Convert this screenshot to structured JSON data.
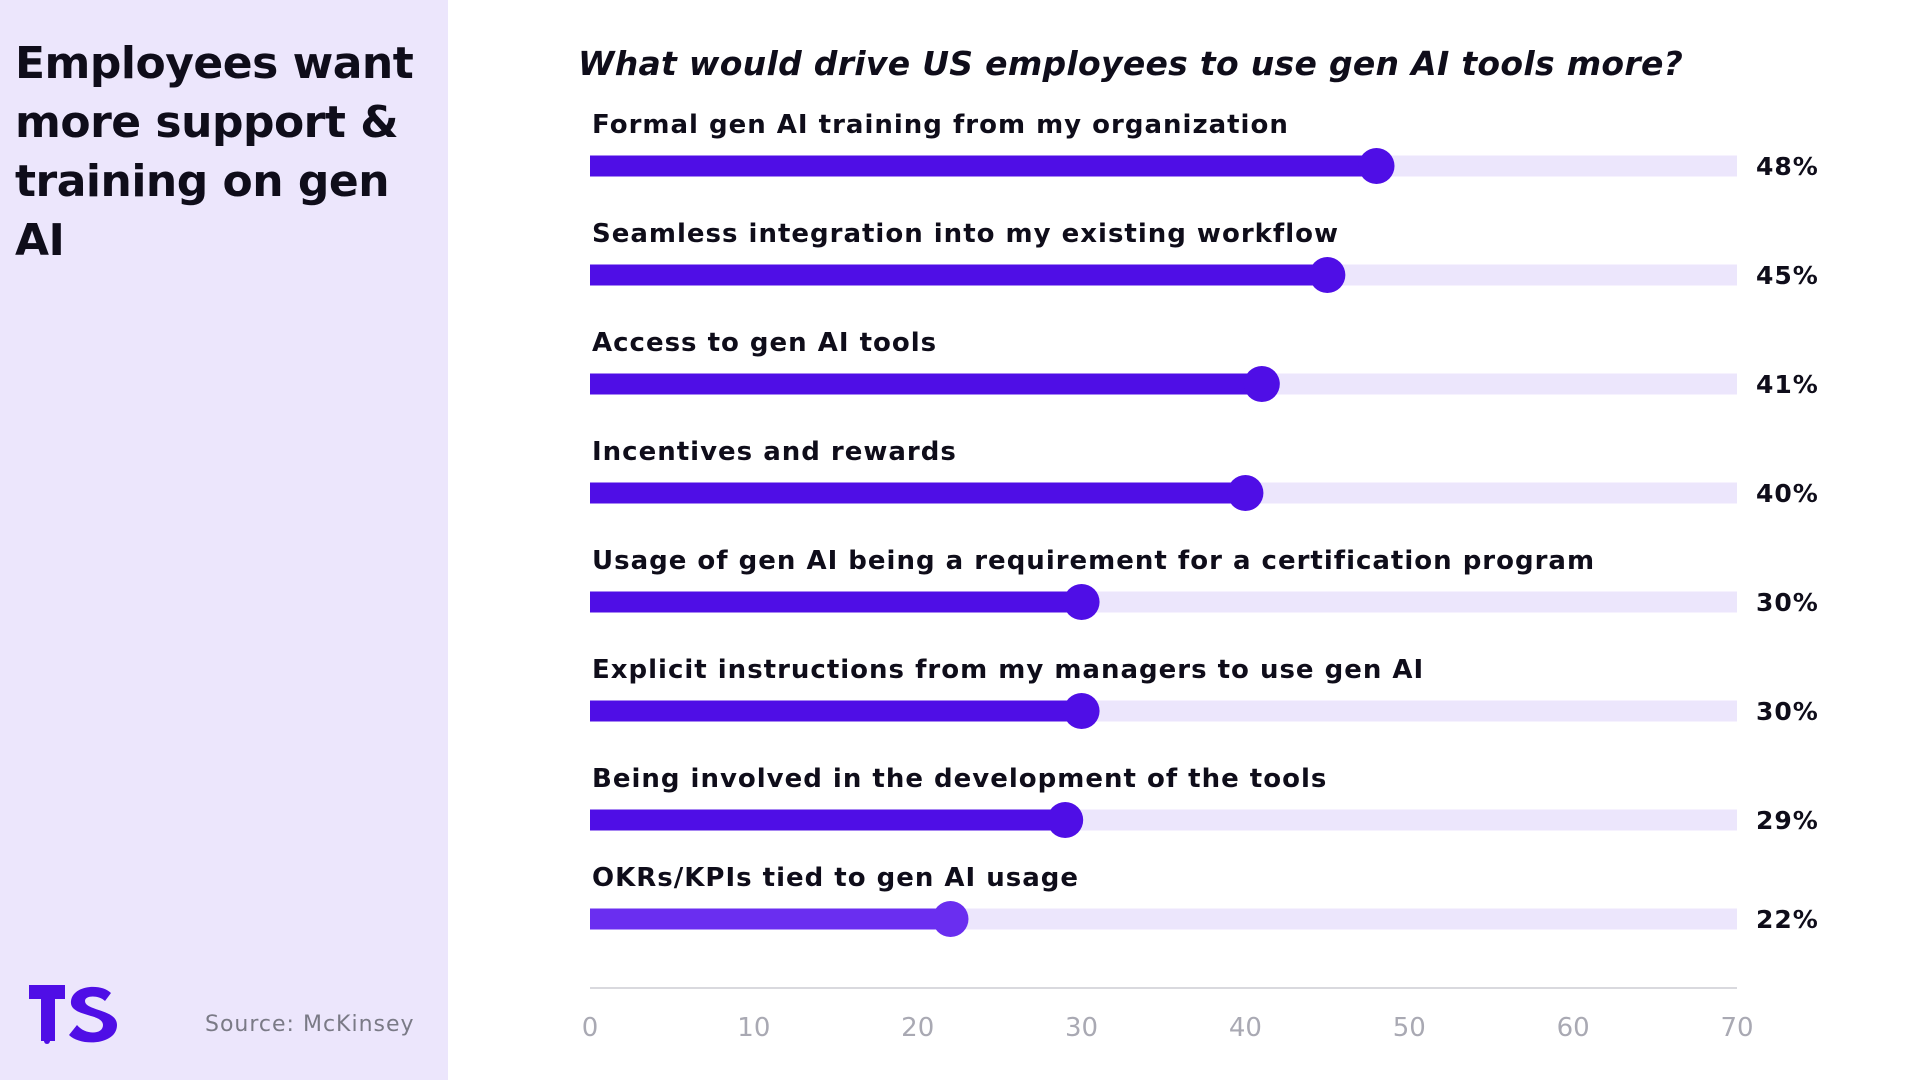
{
  "sidebar": {
    "headline": "Employees want more support & training on gen AI",
    "source": "Source: McKinsey",
    "logo_text": "TS"
  },
  "colors": {
    "sidebar_bg": "#ece6fc",
    "bar_fill": "#4f0ee6",
    "bar_track": "#ece6fc",
    "last_bar_fill": "#6a2ef0",
    "text": "#0f0d1a",
    "axis_tick": "#a9a9b3"
  },
  "chart_data": {
    "type": "bar",
    "orientation": "horizontal",
    "title": "What would drive US employees to use gen AI tools more?",
    "categories": [
      "Formal gen AI training from my organization",
      "Seamless integration into my existing workflow",
      "Access to gen AI tools",
      "Incentives and rewards",
      "Usage of gen AI being a requirement for a certification program",
      "Explicit instructions from my managers to use gen AI",
      "Being involved in the development of the tools",
      "OKRs/KPIs tied to gen AI usage"
    ],
    "values": [
      48,
      45,
      41,
      40,
      30,
      30,
      29,
      22
    ],
    "value_labels": [
      "48%",
      "45%",
      "41%",
      "40%",
      "30%",
      "30%",
      "29%",
      "22%"
    ],
    "xlim": [
      0,
      70
    ],
    "x_ticks": [
      "0",
      "10",
      "20",
      "30",
      "40",
      "50",
      "60",
      "70"
    ],
    "grid": false,
    "legend": "none"
  }
}
